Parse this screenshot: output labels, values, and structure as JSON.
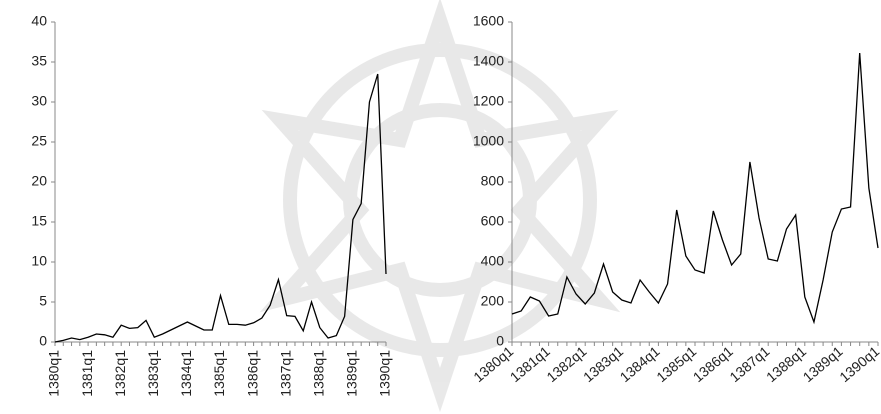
{
  "chart_data": [
    {
      "type": "line",
      "categories": [
        "1380q1",
        null,
        null,
        null,
        "1381q1",
        null,
        null,
        null,
        "1382q1",
        null,
        null,
        null,
        "1383q1",
        null,
        null,
        null,
        "1384q1",
        null,
        null,
        null,
        "1385q1",
        null,
        null,
        null,
        "1386q1",
        null,
        null,
        null,
        "1387q1",
        null,
        null,
        null,
        "1388q1",
        null,
        null,
        null,
        "1389q1",
        null,
        null,
        null,
        "1390q1"
      ],
      "values": [
        0,
        0.2,
        0.5,
        0.3,
        0.6,
        1.0,
        0.9,
        0.6,
        2.1,
        1.7,
        1.8,
        2.7,
        0.6,
        1.0,
        1.5,
        2.0,
        2.5,
        2.0,
        1.5,
        1.5,
        5.8,
        2.2,
        2.2,
        2.1,
        2.4,
        3.0,
        4.6,
        7.8,
        3.3,
        3.2,
        1.4,
        5.0,
        1.8,
        0.5,
        0.8,
        3.2,
        15.3,
        17.3,
        30.0,
        33.5,
        8.5
      ],
      "color": "#000000",
      "ylim": [
        0,
        40
      ],
      "yticks": [
        0,
        5,
        10,
        15,
        20,
        25,
        30,
        35,
        40
      ]
    },
    {
      "type": "line",
      "categories": [
        "1380q1",
        null,
        null,
        null,
        "1381q1",
        null,
        null,
        null,
        "1382q1",
        null,
        null,
        null,
        "1383q1",
        null,
        null,
        null,
        "1384q1",
        null,
        null,
        null,
        "1385q1",
        null,
        null,
        null,
        "1386q1",
        null,
        null,
        null,
        "1387q1",
        null,
        null,
        null,
        "1388q1",
        null,
        null,
        null,
        "1389q1",
        null,
        null,
        null,
        "1390q1"
      ],
      "values": [
        140,
        155,
        225,
        205,
        130,
        140,
        325,
        240,
        190,
        245,
        390,
        250,
        210,
        195,
        310,
        250,
        195,
        290,
        660,
        430,
        360,
        345,
        655,
        510,
        385,
        440,
        900,
        620,
        415,
        405,
        565,
        635,
        225,
        100,
        310,
        550,
        665,
        675,
        1445,
        770,
        470
      ],
      "color": "#000000",
      "ylim": [
        0,
        1600
      ],
      "yticks": [
        0,
        200,
        400,
        600,
        800,
        1000,
        1200,
        1400,
        1600
      ]
    }
  ]
}
